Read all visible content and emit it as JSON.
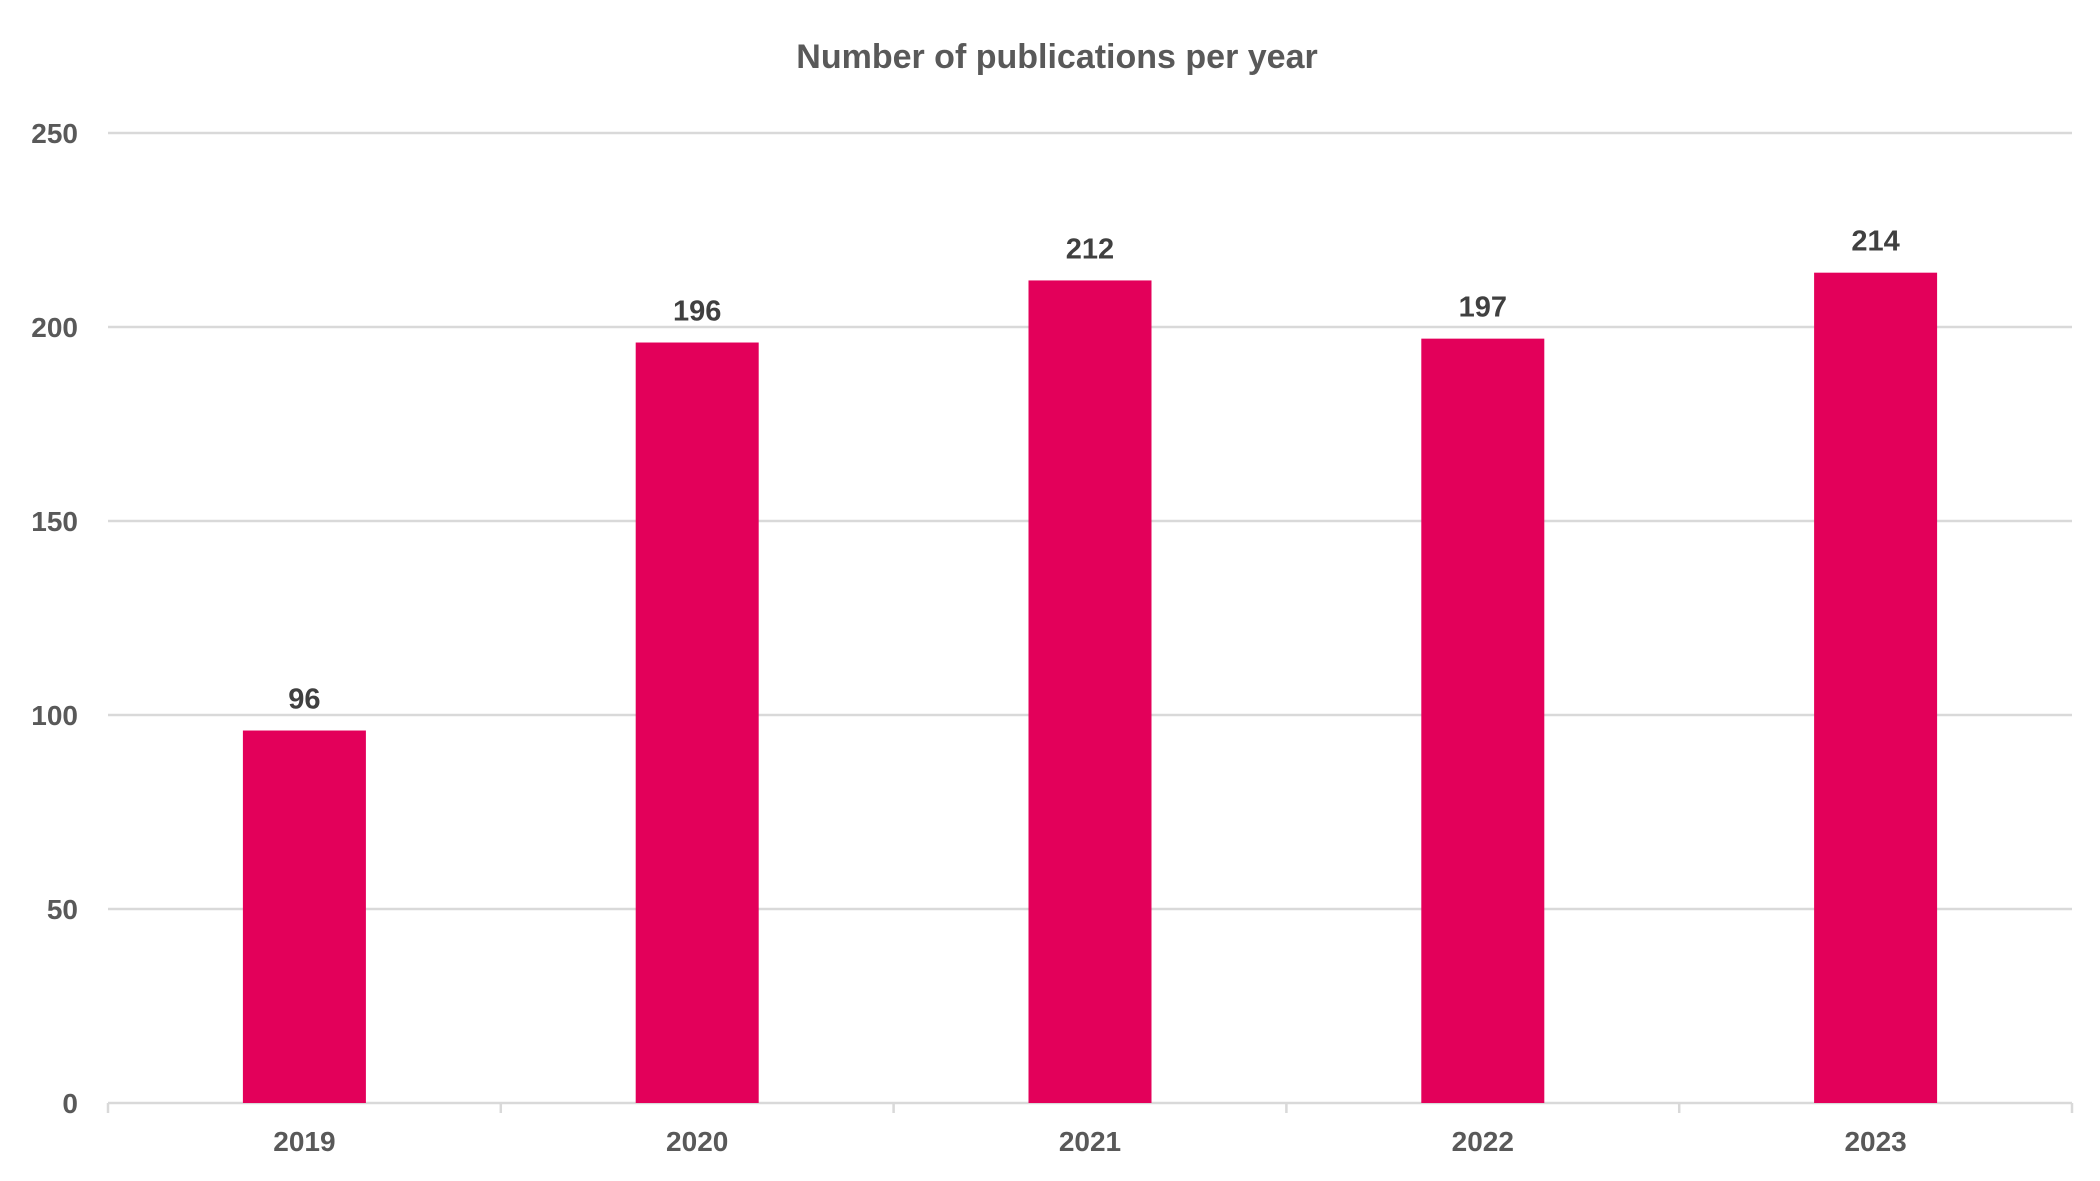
{
  "chart_data": {
    "type": "bar",
    "title": "Number of publications per year",
    "xlabel": "",
    "ylabel": "",
    "categories": [
      "2019",
      "2020",
      "2021",
      "2022",
      "2023"
    ],
    "values": [
      96,
      196,
      212,
      197,
      214
    ],
    "data_labels": [
      "96",
      "196",
      "212",
      "197",
      "214"
    ],
    "yticks": [
      0,
      50,
      100,
      150,
      200,
      250
    ],
    "ytick_labels": [
      "0",
      "50",
      "100",
      "150",
      "200",
      "250"
    ],
    "ylim": [
      0,
      250
    ],
    "grid": true,
    "legend": "none",
    "colors": {
      "bar": "#E3005A",
      "title": "#595959",
      "tick_label": "#595959",
      "data_label": "#404040",
      "gridline": "#D9D9D9"
    }
  }
}
